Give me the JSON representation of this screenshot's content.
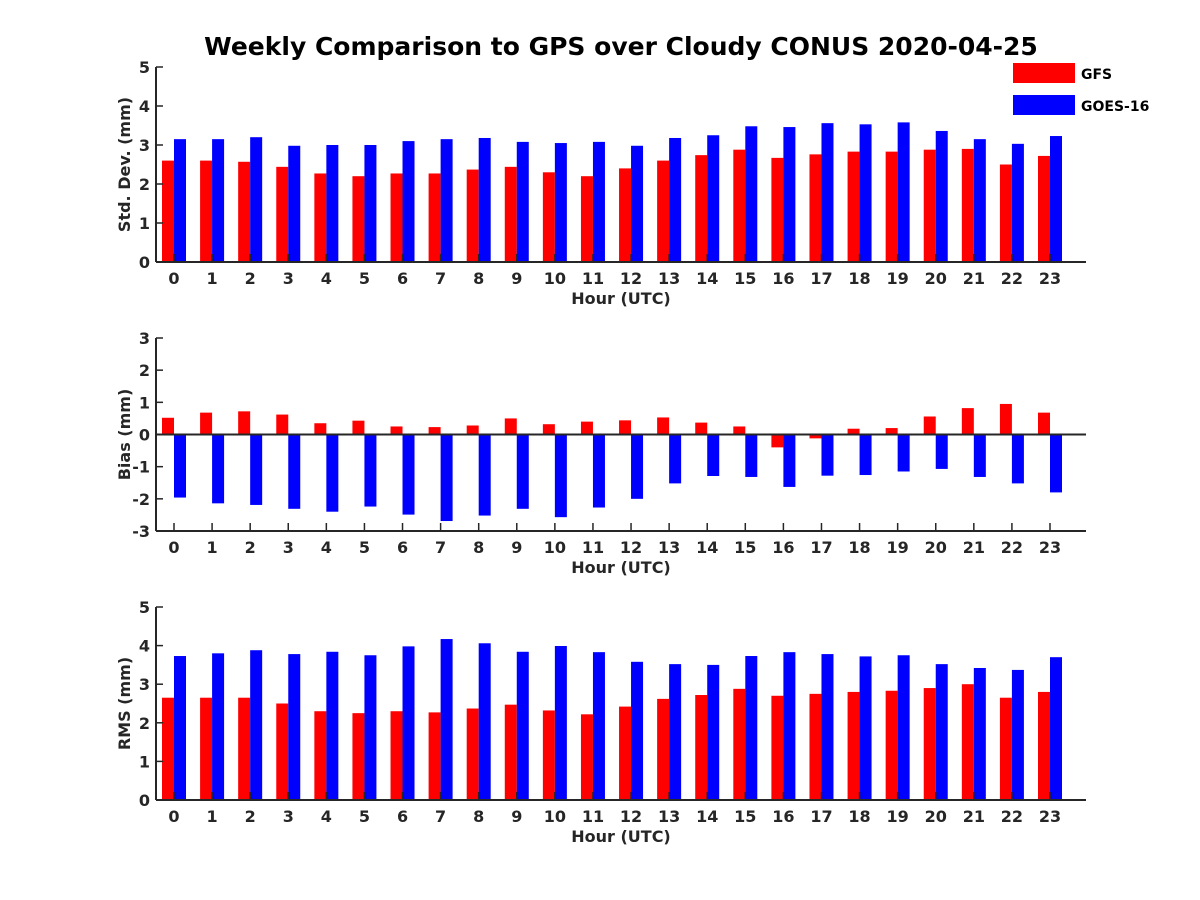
{
  "chart_data": {
    "title": "Weekly Comparison to GPS over Cloudy CONUS 2020-04-25",
    "legend": {
      "placement": "top-right",
      "entries": [
        {
          "name": "GFS",
          "color": "#ff0000"
        },
        {
          "name": "GOES-16",
          "color": "#0000ff"
        }
      ]
    },
    "categories": [
      "0",
      "1",
      "2",
      "3",
      "4",
      "5",
      "6",
      "7",
      "8",
      "9",
      "10",
      "11",
      "12",
      "13",
      "14",
      "15",
      "16",
      "17",
      "18",
      "19",
      "20",
      "21",
      "22",
      "23"
    ],
    "panels": [
      {
        "type": "bar",
        "ylabel": "Std. Dev. (mm)",
        "xlabel": "Hour (UTC)",
        "ylim": [
          0,
          5
        ],
        "yticks": [
          0,
          1,
          2,
          3,
          4,
          5
        ],
        "grid": false,
        "series": [
          {
            "name": "GFS",
            "color": "#ff0000",
            "values": [
              2.6,
              2.6,
              2.57,
              2.44,
              2.27,
              2.2,
              2.27,
              2.27,
              2.37,
              2.44,
              2.3,
              2.2,
              2.4,
              2.6,
              2.74,
              2.88,
              2.67,
              2.76,
              2.83,
              2.83,
              2.88,
              2.9,
              2.5,
              2.72
            ]
          },
          {
            "name": "GOES-16",
            "color": "#0000ff",
            "values": [
              3.15,
              3.15,
              3.2,
              2.98,
              3.0,
              3.0,
              3.1,
              3.15,
              3.18,
              3.08,
              3.05,
              3.08,
              2.98,
              3.18,
              3.25,
              3.48,
              3.46,
              3.56,
              3.53,
              3.58,
              3.36,
              3.15,
              3.03,
              3.23
            ]
          }
        ]
      },
      {
        "type": "bar",
        "ylabel": "Bias (mm)",
        "xlabel": "Hour (UTC)",
        "ylim": [
          -3,
          3
        ],
        "yticks": [
          -3,
          -2,
          -1,
          0,
          1,
          2,
          3
        ],
        "grid": false,
        "zero_line": true,
        "series": [
          {
            "name": "GFS",
            "color": "#ff0000",
            "values": [
              0.52,
              0.68,
              0.72,
              0.62,
              0.35,
              0.43,
              0.25,
              0.23,
              0.28,
              0.5,
              0.32,
              0.4,
              0.44,
              0.53,
              0.37,
              0.25,
              -0.4,
              -0.12,
              0.18,
              0.2,
              0.56,
              0.82,
              0.95,
              0.68
            ]
          },
          {
            "name": "GOES-16",
            "color": "#0000ff",
            "values": [
              -1.96,
              -2.14,
              -2.19,
              -2.31,
              -2.4,
              -2.24,
              -2.49,
              -2.69,
              -2.52,
              -2.31,
              -2.57,
              -2.27,
              -2.0,
              -1.52,
              -1.29,
              -1.32,
              -1.63,
              -1.28,
              -1.26,
              -1.15,
              -1.07,
              -1.32,
              -1.52,
              -1.8
            ]
          }
        ]
      },
      {
        "type": "bar",
        "ylabel": "RMS (mm)",
        "xlabel": "Hour (UTC)",
        "ylim": [
          0,
          5
        ],
        "yticks": [
          0,
          1,
          2,
          3,
          4,
          5
        ],
        "grid": false,
        "series": [
          {
            "name": "GFS",
            "color": "#ff0000",
            "values": [
              2.65,
              2.65,
              2.65,
              2.5,
              2.3,
              2.25,
              2.3,
              2.27,
              2.37,
              2.47,
              2.32,
              2.22,
              2.42,
              2.62,
              2.72,
              2.88,
              2.7,
              2.75,
              2.8,
              2.83,
              2.9,
              3.0,
              2.65,
              2.8
            ]
          },
          {
            "name": "GOES-16",
            "color": "#0000ff",
            "values": [
              3.73,
              3.8,
              3.88,
              3.78,
              3.84,
              3.75,
              3.98,
              4.17,
              4.06,
              3.84,
              3.99,
              3.83,
              3.58,
              3.52,
              3.5,
              3.73,
              3.83,
              3.78,
              3.72,
              3.75,
              3.52,
              3.42,
              3.37,
              3.7
            ]
          }
        ]
      }
    ]
  }
}
